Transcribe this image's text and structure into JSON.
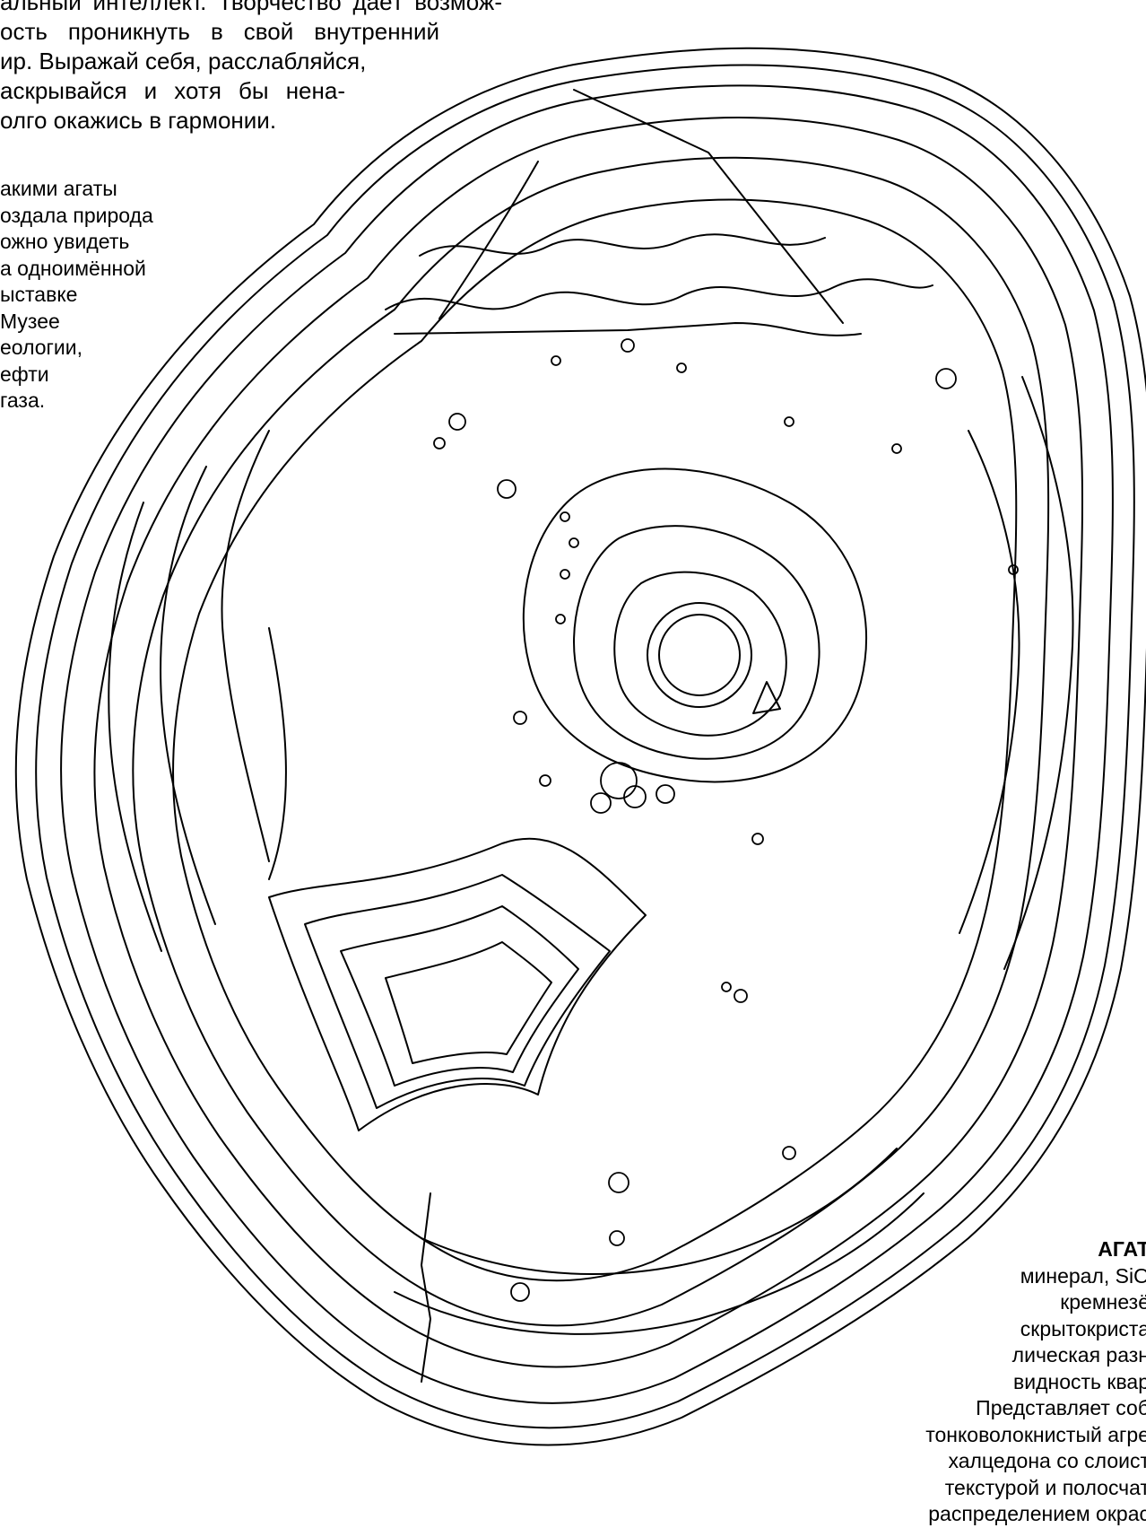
{
  "intro": {
    "lines": [
      "альный интеллект. Творчество даёт возмож-",
      "ость проникнуть в свой внутренний",
      "ир. Выражай себя, расслабляйся,",
      "аскрывайся и хотя бы нена-",
      "олго окажись в гармонии."
    ]
  },
  "museum_note": {
    "lines": [
      "акими агаты",
      "оздала природа",
      "ожно увидеть",
      "а одноимённой",
      "ыставке",
      " Музее",
      "еологии,",
      "ефти",
      " газа."
    ]
  },
  "agate_note": {
    "heading": "АГАТ",
    "lines": [
      "минерал, SiO",
      "кремнезё",
      "скрытокриста",
      "лическая разн",
      "видность квар",
      "Представляет соб",
      "тонковолокнистый агре",
      "халцедона со слоист",
      "текстурой и полосчат",
      "распределением окрас"
    ]
  },
  "colors": {
    "ink": "#000000",
    "paper": "#ffffff"
  },
  "illustration": {
    "icon": "agate-slice-coloring-outline"
  }
}
